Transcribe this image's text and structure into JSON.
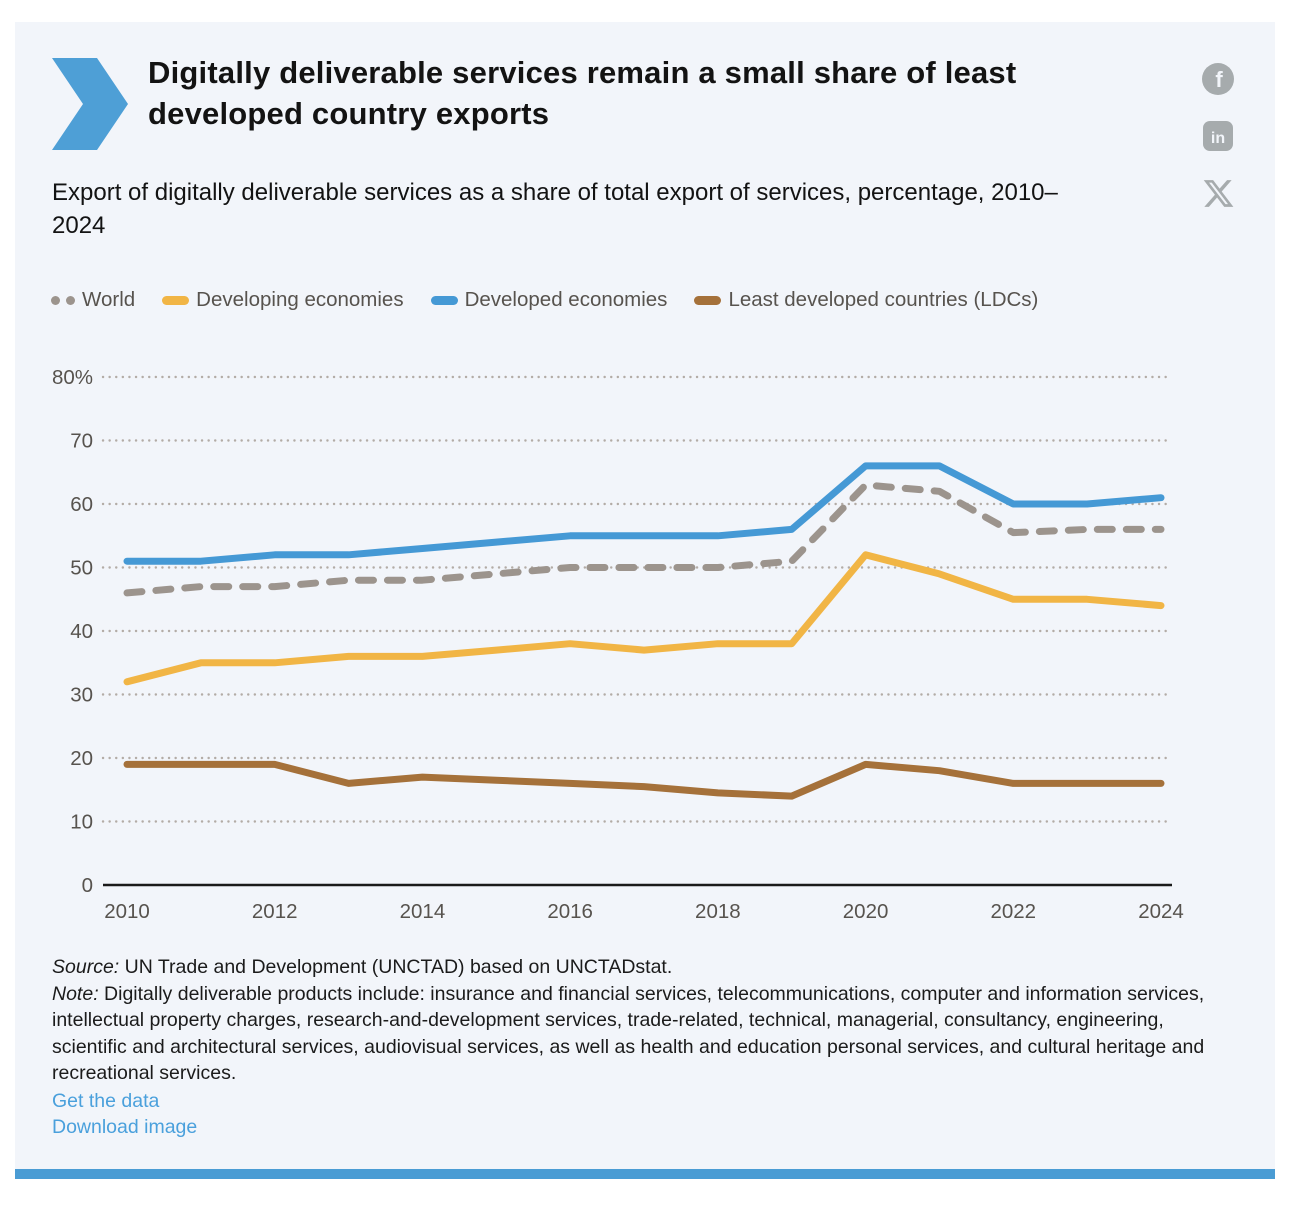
{
  "header": {
    "title": "Digitally deliverable services remain a small share of least developed country exports",
    "subtitle": "Export of digitally deliverable services as a share of total export of services, percentage, 2010–2024"
  },
  "social": {
    "icons": [
      "facebook",
      "linkedin",
      "x"
    ]
  },
  "chart_data": {
    "type": "line",
    "x": [
      2010,
      2011,
      2012,
      2013,
      2014,
      2015,
      2016,
      2017,
      2018,
      2019,
      2020,
      2021,
      2022,
      2023,
      2024
    ],
    "series": [
      {
        "name": "World",
        "color": "#9c948d",
        "dashed": true,
        "values": [
          46,
          47,
          47,
          48,
          48,
          49,
          50,
          50,
          50,
          51,
          63,
          62,
          55.5,
          56,
          56
        ]
      },
      {
        "name": "Developing economies",
        "color": "#f1b545",
        "dashed": false,
        "values": [
          32,
          35,
          35,
          36,
          36,
          37,
          38,
          37,
          38,
          38,
          52,
          49,
          45,
          45,
          44
        ]
      },
      {
        "name": "Developed economies",
        "color": "#4599d5",
        "dashed": false,
        "values": [
          51,
          51,
          52,
          52,
          53,
          54,
          55,
          55,
          55,
          56,
          66,
          66,
          60,
          60,
          61
        ]
      },
      {
        "name": "Least developed countries (LDCs)",
        "color": "#a5713a",
        "dashed": false,
        "values": [
          19,
          19,
          19,
          16,
          17,
          16.5,
          16,
          15.5,
          14.5,
          14,
          19,
          18,
          16,
          16,
          16
        ]
      }
    ],
    "ylim": [
      0,
      80
    ],
    "y_ticks": [
      {
        "v": 80,
        "label": "80%"
      },
      {
        "v": 70,
        "label": "70"
      },
      {
        "v": 60,
        "label": "60"
      },
      {
        "v": 50,
        "label": "50"
      },
      {
        "v": 40,
        "label": "40"
      },
      {
        "v": 30,
        "label": "30"
      },
      {
        "v": 20,
        "label": "20"
      },
      {
        "v": 10,
        "label": "10"
      },
      {
        "v": 0,
        "label": "0"
      }
    ],
    "x_ticks": [
      "2010",
      "2012",
      "2014",
      "2016",
      "2018",
      "2020",
      "2022",
      "2024"
    ],
    "grid": "dotted-horizontal",
    "legend_position": "top"
  },
  "footer": {
    "source_label": "Source:",
    "source_text": "UN Trade and Development (UNCTAD) based on UNCTADstat.",
    "note_label": "Note:",
    "note_text": "Digitally deliverable products include: insurance and financial services, telecommunications, computer and information services, intellectual property charges, research-and-development services, trade-related, technical, managerial, consultancy, engineering, scientific and architectural services, audiovisual services, as well as health and education personal services, and cultural heritage and recreational services.",
    "links": {
      "get_data": "Get the data",
      "download_image": "Download image"
    }
  },
  "colors": {
    "accent_blue": "#4a9cd4",
    "panel_background": "#f2f5fa",
    "grid_dots": "#b3aca6",
    "axis_text": "#57534e",
    "icon_gray": "#a6abad"
  }
}
